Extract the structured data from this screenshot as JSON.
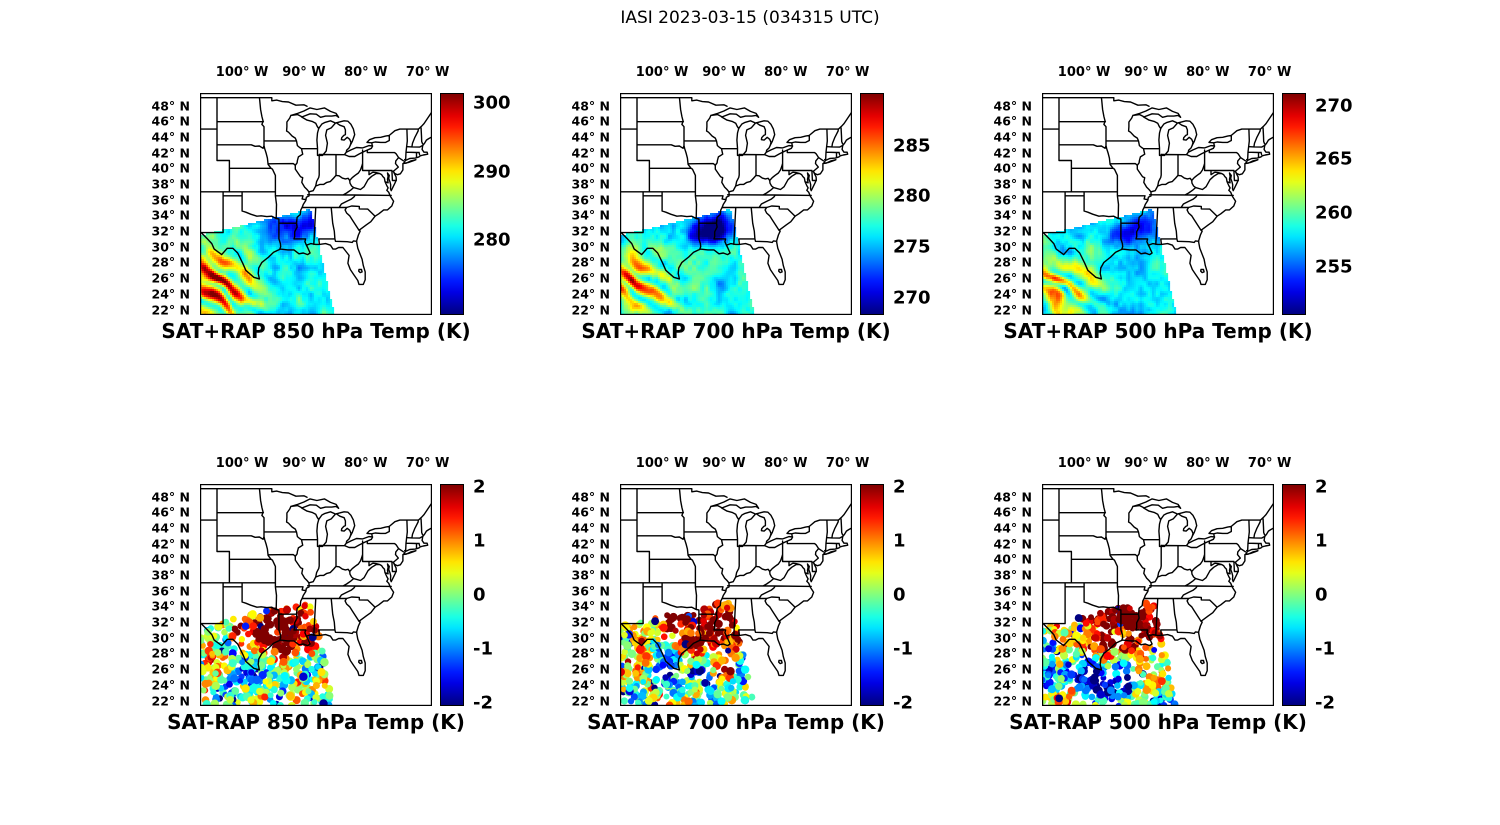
{
  "figure": {
    "title": "IASI 2023-03-15 (034315 UTC)",
    "background_color": "#ffffff",
    "text_color": "#000000"
  },
  "chart_data": {
    "type": "heatmap",
    "figure_kind": "2x3 grid of geographic map panels over the central/eastern United States",
    "colormap": "jet",
    "projection": "equirectangular",
    "map_extent": {
      "lon_min": -106.8,
      "lon_max": -69.3,
      "lat_min": 21.3,
      "lat_max": 49.6
    },
    "axes": {
      "lon_tick_labels": [
        "100° W",
        "90° W",
        "80° W",
        "70° W"
      ],
      "lon_tick_values": [
        -100,
        -90,
        -80,
        -70
      ],
      "lat_tick_labels": [
        "48° N",
        "46° N",
        "44° N",
        "42° N",
        "40° N",
        "38° N",
        "36° N",
        "34° N",
        "32° N",
        "30° N",
        "28° N",
        "26° N",
        "24° N",
        "22° N"
      ],
      "lat_tick_values": [
        48,
        46,
        44,
        42,
        40,
        38,
        36,
        34,
        32,
        30,
        28,
        26,
        24,
        22
      ]
    },
    "swath_description": "IASI satellite overpass swath covering Texas, the western Gulf of Mexico and Louisiana/Mississippi; top row shows retrieved temperature (smooth field: mostly cyan with warm yellow-orange streaks in the southwest and a dark-blue cold pocket near Louisiana); bottom row shows SAT minus RAP differences as discrete footprint dots, heavily saturated dark red over east Texas/Louisiana with mixed speckle to the west and blue clusters in the south",
    "panels": [
      {
        "title": "SAT+RAP 850 hPa Temp (K)",
        "row": 0,
        "col": 0,
        "layer": "swath",
        "units": "K",
        "colorbar_ticks": [
          "300",
          "290",
          "280"
        ],
        "colorbar_tick_values": [
          300,
          290,
          280
        ],
        "vmin": 269.0,
        "vmax": 301.5
      },
      {
        "title": "SAT+RAP 700 hPa Temp (K)",
        "row": 0,
        "col": 1,
        "layer": "swath",
        "units": "K",
        "colorbar_ticks": [
          "285",
          "280",
          "275",
          "270"
        ],
        "colorbar_tick_values": [
          285,
          280,
          275,
          270
        ],
        "vmin": 268.3,
        "vmax": 290.2
      },
      {
        "title": "SAT+RAP 500 hPa Temp (K)",
        "row": 0,
        "col": 2,
        "layer": "swath",
        "units": "K",
        "colorbar_ticks": [
          "270",
          "265",
          "260",
          "255"
        ],
        "colorbar_tick_values": [
          270,
          265,
          260,
          255
        ],
        "vmin": 250.5,
        "vmax": 271.2
      },
      {
        "title": "SAT-RAP 850 hPa Temp (K)",
        "row": 1,
        "col": 0,
        "layer": "dots",
        "units": "K",
        "colorbar_ticks": [
          "2",
          "1",
          "0",
          "-1",
          "-2"
        ],
        "colorbar_tick_values": [
          2,
          1,
          0,
          -1,
          -2
        ],
        "vmin": -2.05,
        "vmax": 2.05
      },
      {
        "title": "SAT-RAP 700 hPa Temp (K)",
        "row": 1,
        "col": 1,
        "layer": "dots",
        "units": "K",
        "colorbar_ticks": [
          "2",
          "1",
          "0",
          "-1",
          "-2"
        ],
        "colorbar_tick_values": [
          2,
          1,
          0,
          -1,
          -2
        ],
        "vmin": -2.05,
        "vmax": 2.05
      },
      {
        "title": "SAT-RAP 500 hPa Temp (K)",
        "row": 1,
        "col": 2,
        "layer": "dots",
        "units": "K",
        "colorbar_ticks": [
          "2",
          "1",
          "0",
          "-1",
          "-2"
        ],
        "colorbar_tick_values": [
          2,
          1,
          0,
          -1,
          -2
        ],
        "vmin": -2.05,
        "vmax": 2.05
      }
    ]
  }
}
